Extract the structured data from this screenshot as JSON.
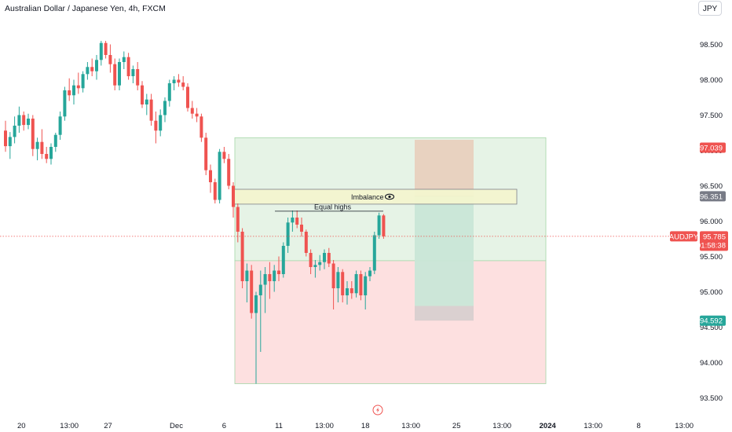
{
  "header": {
    "title": "Australian Dollar / Japanese Yen, 4h, FXCM",
    "currency_button": "JPY"
  },
  "colors": {
    "up": "#26a69a",
    "down": "#ef5350",
    "profit_zone": "#e6f3e6",
    "loss_zone": "#fde0e0",
    "imbalance_zone": "#f4f6cf",
    "target_tag": "#ef5350",
    "stop_tag": "#26a69a",
    "mark_tag": "#787b86"
  },
  "chart_data": {
    "type": "candlestick",
    "symbol": "AUDJPY",
    "interval": "4h",
    "y_axis": {
      "ticks": [
        98.5,
        98.0,
        97.5,
        97.0,
        96.5,
        96.0,
        95.5,
        95.0,
        94.5,
        94.0,
        93.5
      ],
      "tick_labels": [
        "98.500",
        "98.000",
        "97.500",
        "97.000",
        "96.500",
        "96.000",
        "95.500",
        "95.000",
        "94.500",
        "94.000",
        "93.500"
      ],
      "range": [
        93.4,
        99.05
      ]
    },
    "x_axis": {
      "tick_labels": [
        "20",
        "13:00",
        "27",
        "Dec",
        "6",
        "11",
        "13:00",
        "18",
        "13:00",
        "25",
        "13:00",
        "2024",
        "13:00",
        "8",
        "13:00"
      ],
      "tick_bar_index": [
        3.5,
        14,
        22.5,
        37.5,
        48,
        60,
        70,
        79,
        89,
        99,
        109,
        119,
        129,
        139,
        149
      ]
    },
    "candles": [
      [
        97.28,
        97.42,
        96.98,
        97.06
      ],
      [
        97.06,
        97.26,
        96.88,
        97.19
      ],
      [
        97.19,
        97.48,
        97.1,
        97.35
      ],
      [
        97.35,
        97.62,
        97.25,
        97.5
      ],
      [
        97.5,
        97.55,
        97.28,
        97.36
      ],
      [
        97.36,
        97.52,
        97.3,
        97.45
      ],
      [
        97.45,
        97.5,
        96.92,
        97.02
      ],
      [
        97.02,
        97.18,
        96.86,
        97.12
      ],
      [
        97.12,
        97.3,
        96.88,
        96.95
      ],
      [
        96.95,
        97.05,
        96.82,
        96.88
      ],
      [
        96.88,
        97.1,
        96.8,
        97.05
      ],
      [
        97.05,
        97.25,
        96.98,
        97.22
      ],
      [
        97.22,
        97.55,
        97.15,
        97.48
      ],
      [
        97.48,
        97.9,
        97.42,
        97.85
      ],
      [
        97.85,
        98.02,
        97.7,
        97.78
      ],
      [
        97.78,
        98.0,
        97.65,
        97.92
      ],
      [
        97.92,
        98.1,
        97.8,
        97.88
      ],
      [
        97.88,
        98.12,
        97.82,
        98.08
      ],
      [
        98.08,
        98.25,
        98.0,
        98.18
      ],
      [
        98.18,
        98.3,
        98.05,
        98.12
      ],
      [
        98.12,
        98.35,
        98.0,
        98.28
      ],
      [
        98.28,
        98.55,
        98.2,
        98.52
      ],
      [
        98.52,
        98.55,
        98.3,
        98.35
      ],
      [
        98.35,
        98.5,
        98.1,
        98.22
      ],
      [
        98.22,
        98.3,
        97.85,
        97.92
      ],
      [
        97.92,
        98.3,
        97.85,
        98.25
      ],
      [
        98.25,
        98.4,
        98.15,
        98.32
      ],
      [
        98.32,
        98.38,
        98.0,
        98.05
      ],
      [
        98.05,
        98.2,
        97.95,
        98.15
      ],
      [
        98.15,
        98.25,
        97.85,
        97.92
      ],
      [
        97.92,
        97.98,
        97.6,
        97.65
      ],
      [
        97.65,
        97.8,
        97.5,
        97.72
      ],
      [
        97.72,
        97.8,
        97.35,
        97.42
      ],
      [
        97.42,
        97.55,
        97.1,
        97.28
      ],
      [
        97.28,
        97.58,
        97.2,
        97.5
      ],
      [
        97.5,
        97.75,
        97.4,
        97.7
      ],
      [
        97.7,
        98.0,
        97.62,
        97.95
      ],
      [
        97.95,
        98.05,
        97.85,
        98.0
      ],
      [
        98.0,
        98.08,
        97.9,
        97.96
      ],
      [
        97.96,
        98.05,
        97.85,
        97.9
      ],
      [
        97.9,
        97.95,
        97.55,
        97.6
      ],
      [
        97.6,
        97.7,
        97.45,
        97.52
      ],
      [
        97.52,
        97.6,
        97.4,
        97.48
      ],
      [
        97.48,
        97.52,
        97.12,
        97.18
      ],
      [
        97.18,
        97.25,
        96.65,
        96.72
      ],
      [
        96.72,
        96.8,
        96.4,
        96.55
      ],
      [
        96.55,
        96.6,
        96.25,
        96.3
      ],
      [
        96.3,
        97.02,
        96.25,
        96.98
      ],
      [
        96.98,
        97.05,
        96.82,
        96.88
      ],
      [
        96.88,
        96.95,
        96.45,
        96.5
      ],
      [
        96.5,
        96.55,
        96.05,
        96.2
      ],
      [
        96.2,
        96.25,
        95.7,
        95.85
      ],
      [
        95.85,
        95.9,
        95.05,
        95.15
      ],
      [
        95.15,
        95.4,
        94.85,
        95.3
      ],
      [
        95.3,
        95.38,
        94.62,
        94.7
      ],
      [
        94.7,
        95.0,
        93.7,
        94.95
      ],
      [
        94.95,
        95.3,
        94.15,
        95.1
      ],
      [
        95.1,
        95.35,
        94.7,
        95.25
      ],
      [
        95.25,
        95.42,
        94.9,
        95.15
      ],
      [
        95.15,
        95.38,
        95.0,
        95.3
      ],
      [
        95.3,
        95.5,
        95.15,
        95.25
      ],
      [
        95.25,
        95.7,
        95.2,
        95.65
      ],
      [
        95.65,
        96.05,
        95.55,
        95.98
      ],
      [
        95.98,
        96.15,
        95.85,
        96.05
      ],
      [
        96.05,
        96.15,
        95.9,
        95.95
      ],
      [
        95.95,
        96.05,
        95.78,
        95.85
      ],
      [
        95.85,
        95.88,
        95.5,
        95.55
      ],
      [
        95.55,
        95.6,
        95.25,
        95.35
      ],
      [
        95.35,
        95.45,
        95.2,
        95.38
      ],
      [
        95.38,
        95.52,
        95.3,
        95.42
      ],
      [
        95.42,
        95.6,
        95.32,
        95.55
      ],
      [
        95.55,
        95.62,
        95.35,
        95.4
      ],
      [
        95.4,
        95.45,
        94.75,
        95.05
      ],
      [
        95.05,
        95.35,
        94.85,
        95.28
      ],
      [
        95.28,
        95.32,
        94.85,
        94.95
      ],
      [
        94.95,
        95.15,
        94.82,
        95.05
      ],
      [
        95.05,
        95.15,
        94.9,
        94.98
      ],
      [
        94.98,
        95.3,
        94.92,
        95.25
      ],
      [
        95.25,
        95.3,
        94.88,
        94.95
      ],
      [
        94.95,
        95.28,
        94.75,
        95.22
      ],
      [
        95.22,
        95.35,
        95.15,
        95.3
      ],
      [
        95.3,
        95.85,
        95.25,
        95.8
      ],
      [
        95.8,
        96.12,
        95.75,
        96.08
      ],
      [
        96.08,
        96.1,
        95.75,
        95.785
      ]
    ],
    "current_price": {
      "label": "AUDJPY",
      "value": "95.785",
      "countdown": "01:58:38"
    },
    "price_tags": [
      {
        "value": 97.039,
        "label": "97.039",
        "color_key": "target_tag"
      },
      {
        "value": 96.351,
        "label": "96.351",
        "color_key": "mark_tag"
      },
      {
        "value": 94.592,
        "label": "94.592",
        "color_key": "stop_tag"
      }
    ],
    "annotations": {
      "imbalance": {
        "label": "Imbalance",
        "top": 96.45,
        "bottom": 96.24
      },
      "equal_highs": {
        "label": "Equal highs",
        "price": 96.14
      },
      "profit_zone": {
        "top": 97.18,
        "bottom": 95.44
      },
      "loss_zone": {
        "top": 95.44,
        "bottom": 93.7
      },
      "trade_box": {
        "entry": 96.351,
        "target": 97.039,
        "stop": 94.592
      }
    }
  }
}
